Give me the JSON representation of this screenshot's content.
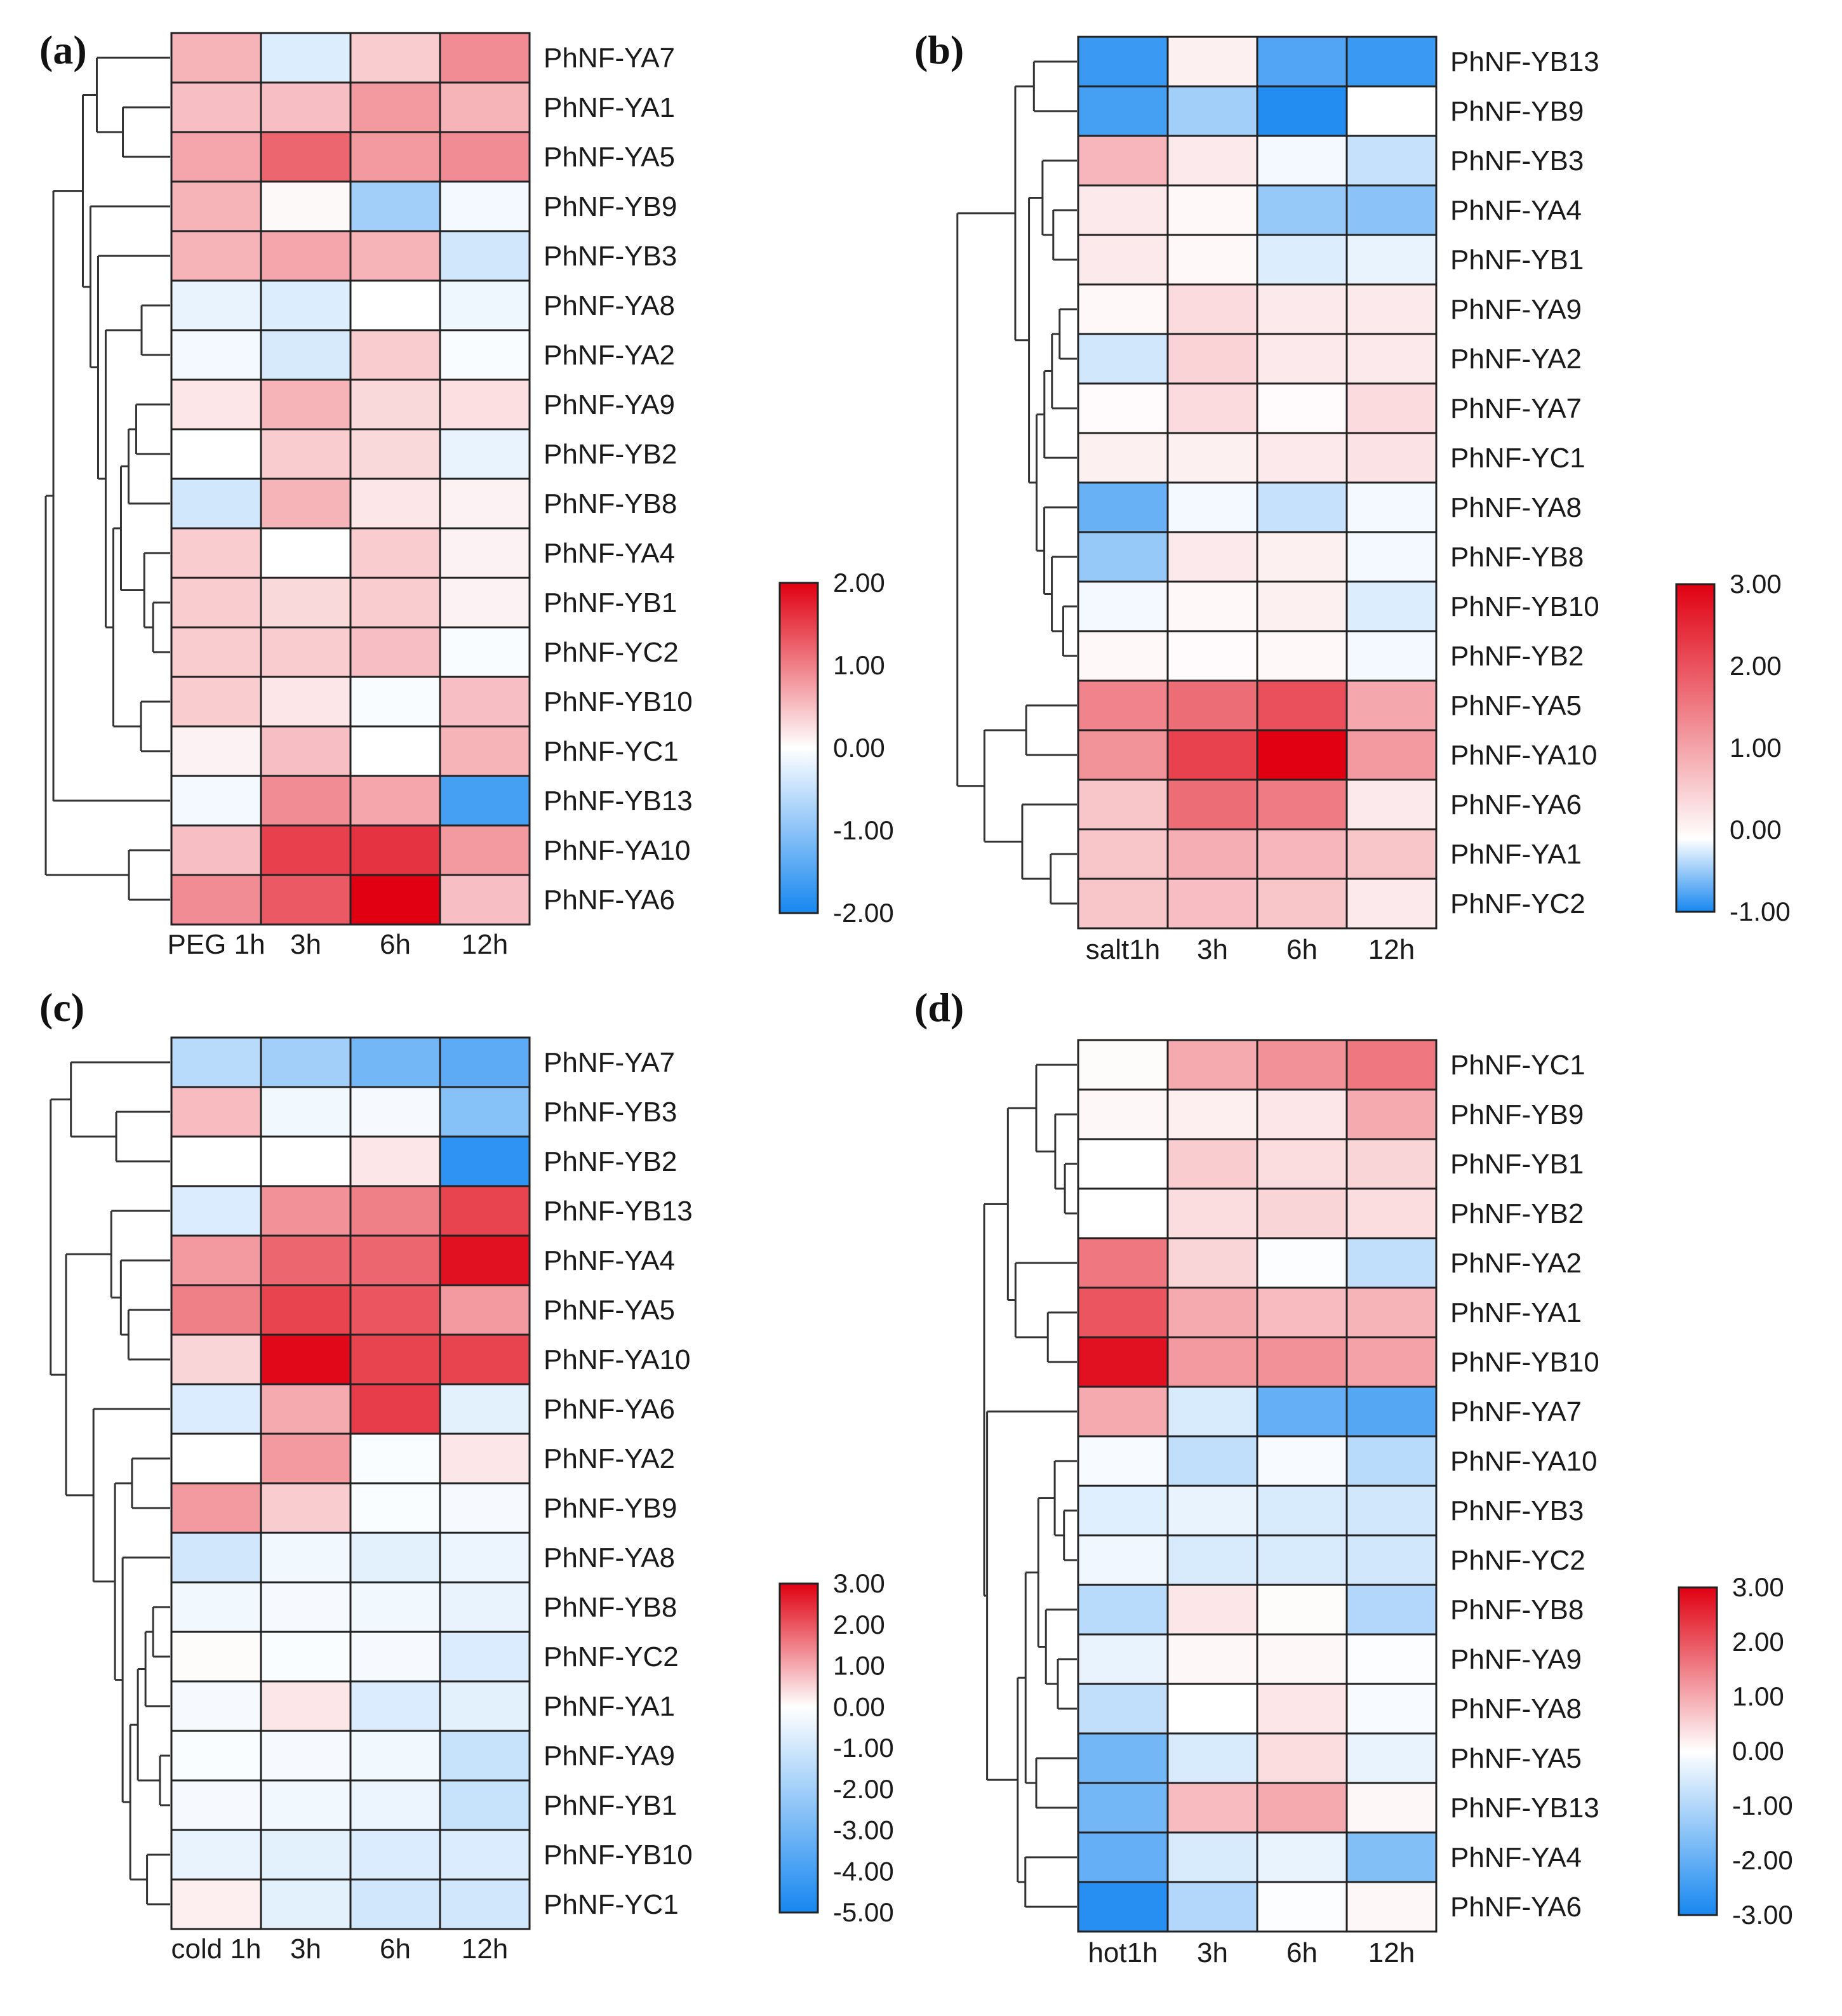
{
  "colors": {
    "neg": "#1787f0",
    "mid": "#ffffff",
    "pos": "#e00011",
    "border": "#222222",
    "tree": "#333333"
  },
  "chart_data": [
    {
      "type": "heatmap",
      "panel": "(a)",
      "columns": [
        "PEG 1h",
        "3h",
        "6h",
        "12h"
      ],
      "rows": [
        "PhNF-YA7",
        "PhNF-YA1",
        "PhNF-YA5",
        "PhNF-YB9",
        "PhNF-YB3",
        "PhNF-YA8",
        "PhNF-YA2",
        "PhNF-YA9",
        "PhNF-YB2",
        "PhNF-YB8",
        "PhNF-YA4",
        "PhNF-YB1",
        "PhNF-YC2",
        "PhNF-YB10",
        "PhNF-YC1",
        "PhNF-YB13",
        "PhNF-YA10",
        "PhNF-YA6"
      ],
      "values": [
        [
          0.6,
          -0.3,
          0.4,
          0.9
        ],
        [
          0.5,
          0.5,
          0.8,
          0.6
        ],
        [
          0.7,
          1.2,
          0.8,
          0.9
        ],
        [
          0.6,
          0.05,
          -0.8,
          -0.1
        ],
        [
          0.6,
          0.7,
          0.6,
          -0.4
        ],
        [
          -0.2,
          -0.3,
          0.0,
          -0.15
        ],
        [
          -0.1,
          -0.35,
          0.4,
          -0.05
        ],
        [
          0.2,
          0.6,
          0.3,
          0.25
        ],
        [
          0.0,
          0.4,
          0.3,
          -0.2
        ],
        [
          -0.4,
          0.6,
          0.2,
          0.1
        ],
        [
          0.4,
          0.0,
          0.4,
          0.1
        ],
        [
          0.4,
          0.3,
          0.4,
          0.1
        ],
        [
          0.4,
          0.4,
          0.5,
          -0.05
        ],
        [
          0.4,
          0.2,
          -0.05,
          0.5
        ],
        [
          0.1,
          0.5,
          0.0,
          0.6
        ],
        [
          -0.1,
          0.9,
          0.7,
          -1.6
        ],
        [
          0.5,
          1.5,
          1.6,
          0.8
        ],
        [
          0.9,
          1.3,
          2.0,
          0.5
        ]
      ],
      "colorbar": {
        "ticks": [
          "2.00",
          "1.00",
          "0.00",
          "-1.00",
          "-2.00"
        ],
        "range": [
          -2,
          2
        ]
      }
    },
    {
      "type": "heatmap",
      "panel": "(b)",
      "columns": [
        "salt1h",
        "3h",
        "6h",
        "12h"
      ],
      "rows": [
        "PhNF-YB13",
        "PhNF-YB9",
        "PhNF-YB3",
        "PhNF-YA4",
        "PhNF-YB1",
        "PhNF-YA9",
        "PhNF-YA2",
        "PhNF-YA7",
        "PhNF-YC1",
        "PhNF-YA8",
        "PhNF-YB8",
        "PhNF-YB10",
        "PhNF-YB2",
        "PhNF-YA5",
        "PhNF-YA10",
        "PhNF-YA6",
        "PhNF-YA1",
        "PhNF-YC2"
      ],
      "values": [
        [
          -0.85,
          0.2,
          -0.75,
          -0.85
        ],
        [
          -0.8,
          -0.4,
          -0.95,
          0.0
        ],
        [
          1.0,
          0.3,
          -0.05,
          -0.25
        ],
        [
          0.3,
          0.1,
          -0.45,
          -0.5
        ],
        [
          0.3,
          0.1,
          -0.15,
          -0.1
        ],
        [
          0.1,
          0.5,
          0.3,
          0.3
        ],
        [
          -0.2,
          0.6,
          0.3,
          0.3
        ],
        [
          0.05,
          0.5,
          0.05,
          0.5
        ],
        [
          0.2,
          0.2,
          0.3,
          0.4
        ],
        [
          -0.65,
          -0.05,
          -0.25,
          -0.05
        ],
        [
          -0.45,
          0.3,
          0.2,
          -0.05
        ],
        [
          -0.05,
          0.1,
          0.2,
          -0.15
        ],
        [
          0.1,
          0.05,
          0.1,
          -0.05
        ],
        [
          1.7,
          2.0,
          2.4,
          1.2
        ],
        [
          1.5,
          2.6,
          3.5,
          1.4
        ],
        [
          0.8,
          2.0,
          1.8,
          0.3
        ],
        [
          0.8,
          1.1,
          1.0,
          0.8
        ],
        [
          0.8,
          0.9,
          0.8,
          0.3
        ]
      ],
      "colorbar": {
        "ticks": [
          "3.00",
          "2.00",
          "1.00",
          "0.00",
          "-1.00"
        ],
        "range": [
          -1,
          3.5
        ]
      }
    },
    {
      "type": "heatmap",
      "panel": "(c)",
      "columns": [
        "cold 1h",
        "3h",
        "6h",
        "12h"
      ],
      "rows": [
        "PhNF-YA7",
        "PhNF-YB3",
        "PhNF-YB2",
        "PhNF-YB13",
        "PhNF-YA4",
        "PhNF-YA5",
        "PhNF-YA10",
        "PhNF-YA6",
        "PhNF-YA2",
        "PhNF-YB9",
        "PhNF-YA8",
        "PhNF-YB8",
        "PhNF-YC2",
        "PhNF-YA1",
        "PhNF-YA9",
        "PhNF-YB1",
        "PhNF-YB10",
        "PhNF-YC1"
      ],
      "values": [
        [
          -1.5,
          -2.0,
          -3.0,
          -3.5
        ],
        [
          0.8,
          -0.3,
          -0.2,
          -2.6
        ],
        [
          0.0,
          0.0,
          0.3,
          -4.5
        ],
        [
          -0.8,
          1.3,
          1.5,
          2.2
        ],
        [
          1.2,
          1.8,
          1.8,
          2.8
        ],
        [
          1.5,
          2.2,
          2.0,
          1.2
        ],
        [
          0.5,
          2.9,
          2.2,
          2.2
        ],
        [
          -0.8,
          1.0,
          2.3,
          -0.6
        ],
        [
          0.0,
          1.2,
          -0.1,
          0.3
        ],
        [
          1.2,
          0.6,
          -0.1,
          -0.2
        ],
        [
          -1.0,
          -0.3,
          -0.6,
          -0.4
        ],
        [
          -0.3,
          -0.2,
          -0.3,
          -0.5
        ],
        [
          0.05,
          -0.1,
          -0.2,
          -0.8
        ],
        [
          -0.2,
          0.3,
          -0.8,
          -0.6
        ],
        [
          -0.1,
          -0.2,
          -0.3,
          -1.2
        ],
        [
          -0.2,
          -0.3,
          -0.4,
          -1.2
        ],
        [
          -0.5,
          -0.6,
          -0.8,
          -0.8
        ],
        [
          0.2,
          -0.6,
          -1.0,
          -1.0
        ]
      ],
      "colorbar": {
        "ticks": [
          "3.00",
          "2.00",
          "1.00",
          "0.00",
          "-1.00",
          "-2.00",
          "-3.00",
          "-4.00",
          "-5.00"
        ],
        "range": [
          -5,
          3
        ]
      }
    },
    {
      "type": "heatmap",
      "panel": "(d)",
      "columns": [
        "hot1h",
        "3h",
        "6h",
        "12h"
      ],
      "rows": [
        "PhNF-YC1",
        "PhNF-YB9",
        "PhNF-YB1",
        "PhNF-YB2",
        "PhNF-YA2",
        "PhNF-YA1",
        "PhNF-YB10",
        "PhNF-YA7",
        "PhNF-YA10",
        "PhNF-YB3",
        "PhNF-YC2",
        "PhNF-YB8",
        "PhNF-YA9",
        "PhNF-YA8",
        "PhNF-YA5",
        "PhNF-YB13",
        "PhNF-YA4",
        "PhNF-YA6"
      ],
      "values": [
        [
          0.05,
          1.0,
          1.3,
          1.6
        ],
        [
          0.1,
          0.2,
          0.3,
          1.0
        ],
        [
          0.0,
          0.6,
          0.4,
          0.5
        ],
        [
          0.0,
          0.4,
          0.5,
          0.4
        ],
        [
          1.6,
          0.5,
          -0.05,
          -0.8
        ],
        [
          2.0,
          1.0,
          0.8,
          0.9
        ],
        [
          2.8,
          1.2,
          1.3,
          1.1
        ],
        [
          1.0,
          -0.5,
          -2.0,
          -2.2
        ],
        [
          -0.1,
          -0.8,
          -0.1,
          -0.9
        ],
        [
          -0.4,
          -0.3,
          -0.5,
          -0.6
        ],
        [
          -0.2,
          -0.5,
          -0.5,
          -0.6
        ],
        [
          -0.9,
          0.3,
          0.05,
          -1.0
        ],
        [
          -0.3,
          0.1,
          0.1,
          -0.05
        ],
        [
          -0.8,
          0.0,
          0.3,
          -0.1
        ],
        [
          -1.8,
          -0.5,
          0.4,
          -0.3
        ],
        [
          -1.8,
          0.8,
          1.0,
          0.1
        ],
        [
          -2.0,
          -0.5,
          -0.3,
          -1.6
        ],
        [
          -2.8,
          -1.0,
          -0.05,
          0.1
        ]
      ],
      "colorbar": {
        "ticks": [
          "3.00",
          "2.00",
          "1.00",
          "0.00",
          "-1.00",
          "-2.00",
          "-3.00"
        ],
        "range": [
          -3,
          3
        ]
      }
    }
  ]
}
